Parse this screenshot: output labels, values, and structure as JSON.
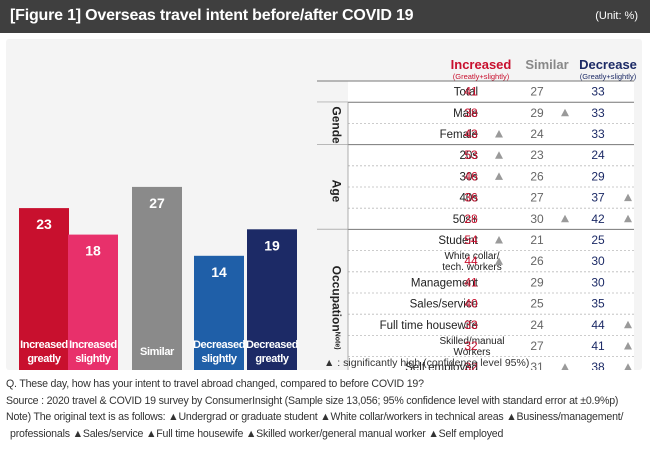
{
  "header": {
    "title": "[Figure 1] Overseas travel intent before/after COVID 19",
    "unit": "(Unit: %)"
  },
  "colors": {
    "increased_greatly": "#c8102e",
    "increased_slightly": "#e8306b",
    "similar": "#8a8a8a",
    "decreased_slightly": "#1f5fa8",
    "decreased_greatly": "#1c2a66",
    "triangle": "#9a9a9a"
  },
  "chart_data": {
    "type": "bar",
    "categories": [
      "Increased greatly",
      "Increased slightly",
      "Similar",
      "Decreased slightly",
      "Decreased greatly"
    ],
    "values": [
      23,
      18,
      27,
      14,
      19
    ]
  },
  "table": {
    "headers": {
      "increased": "Increased",
      "increased_sub": "(Greatly+slightly)",
      "similar": "Similar",
      "decrease": "Decrease",
      "decrease_sub": "(Greatly+slightly)"
    },
    "groups": [
      {
        "name": "",
        "rows": [
          {
            "label": "Total",
            "increased": 41,
            "inc_mark": false,
            "similar": 27,
            "sim_mark": false,
            "decrease": 33,
            "dec_mark": false
          }
        ]
      },
      {
        "name": "Gender",
        "rows": [
          {
            "label": "Male",
            "increased": 38,
            "inc_mark": false,
            "similar": 29,
            "sim_mark": true,
            "decrease": 33,
            "dec_mark": false
          },
          {
            "label": "Female",
            "increased": 43,
            "inc_mark": true,
            "similar": 24,
            "sim_mark": false,
            "decrease": 33,
            "dec_mark": false
          }
        ]
      },
      {
        "name": "Age",
        "rows": [
          {
            "label": "20s",
            "increased": 53,
            "inc_mark": true,
            "similar": 23,
            "sim_mark": false,
            "decrease": 24,
            "dec_mark": false
          },
          {
            "label": "30s",
            "increased": 46,
            "inc_mark": true,
            "similar": 26,
            "sim_mark": false,
            "decrease": 29,
            "dec_mark": false
          },
          {
            "label": "40s",
            "increased": 36,
            "inc_mark": false,
            "similar": 27,
            "sim_mark": false,
            "decrease": 37,
            "dec_mark": true
          },
          {
            "label": "50s+",
            "increased": 28,
            "inc_mark": false,
            "similar": 30,
            "sim_mark": true,
            "decrease": 42,
            "dec_mark": true
          }
        ]
      },
      {
        "name": "Occupation",
        "note": "Note)",
        "rows": [
          {
            "label": "Student",
            "increased": 54,
            "inc_mark": true,
            "similar": 21,
            "sim_mark": false,
            "decrease": 25,
            "dec_mark": false
          },
          {
            "label": "White collar/\ntech. workers",
            "increased": 44,
            "inc_mark": true,
            "similar": 26,
            "sim_mark": false,
            "decrease": 30,
            "dec_mark": false
          },
          {
            "label": "Management",
            "increased": 41,
            "inc_mark": false,
            "similar": 29,
            "sim_mark": false,
            "decrease": 30,
            "dec_mark": false
          },
          {
            "label": "Sales/service",
            "increased": 40,
            "inc_mark": false,
            "similar": 25,
            "sim_mark": false,
            "decrease": 35,
            "dec_mark": false
          },
          {
            "label": "Full time housewife",
            "increased": 33,
            "inc_mark": false,
            "similar": 24,
            "sim_mark": false,
            "decrease": 44,
            "dec_mark": true
          },
          {
            "label": "Skilled/manual\nWorkers",
            "increased": 32,
            "inc_mark": false,
            "similar": 27,
            "sim_mark": false,
            "decrease": 41,
            "dec_mark": true
          },
          {
            "label": "Self employed",
            "increased": 32,
            "inc_mark": false,
            "similar": 31,
            "sim_mark": true,
            "decrease": 38,
            "dec_mark": true
          }
        ]
      }
    ],
    "legend": "▲ : significantly high (confidence level 95%)"
  },
  "notes": {
    "question": "Q. These day, how has your intent to travel abroad changed, compared to before COVID 19?",
    "source": "Source : 2020 travel & COVID 19 survey by ConsumerInsight (Sample size 13,056; 95% confidence level with standard error at ±0.9%p)",
    "note_line1": "Note) The original text is as follows: ▲Undergrad or graduate student ▲White collar/workers in technical areas ▲Business/management/",
    "note_line2": "professionals ▲Sales/service ▲Full time housewife ▲Skilled worker/general manual worker ▲Self employed"
  }
}
